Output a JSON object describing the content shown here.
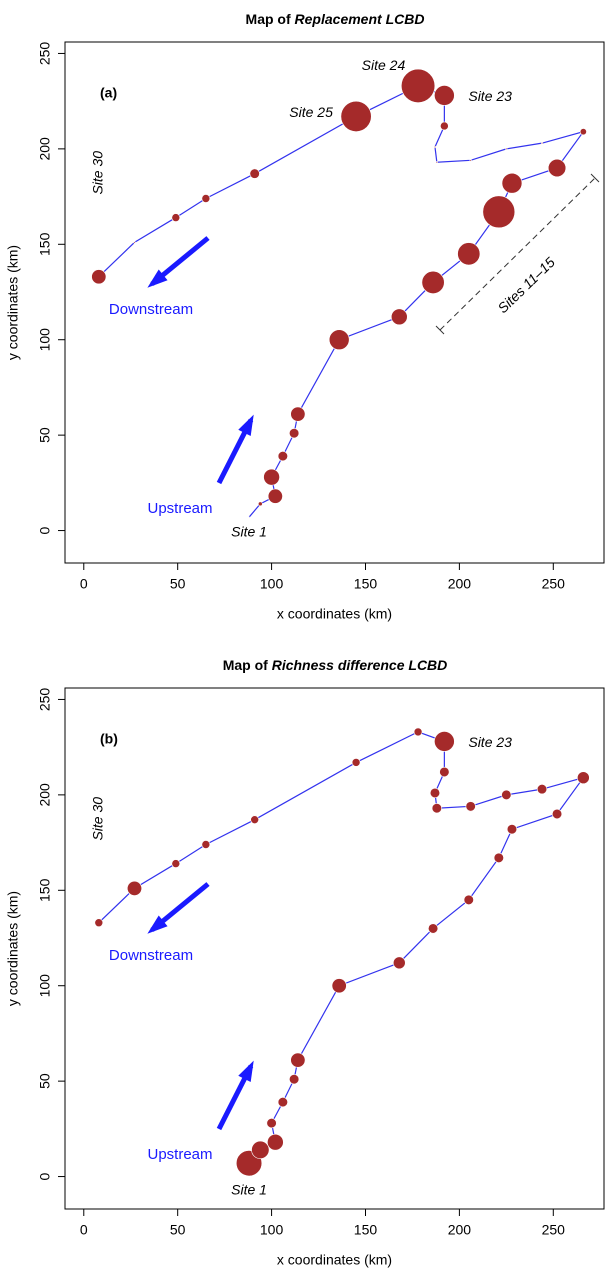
{
  "chart_data": [
    {
      "type": "bubble",
      "panel_label": "(a)",
      "title": "Map of",
      "title_italic": "Replacement LCBD",
      "xlabel": "x coordinates (km)",
      "ylabel": "y coordinates (km)",
      "xlim": [
        -10,
        277
      ],
      "ylim": [
        -17,
        256
      ],
      "xticks": [
        0,
        50,
        100,
        150,
        200,
        250
      ],
      "yticks": [
        0,
        50,
        100,
        150,
        200,
        250
      ],
      "color": "#a52a2a",
      "line_color": "#3333ee",
      "x": [
        88,
        94,
        102,
        100,
        106,
        112,
        114,
        136,
        168,
        186,
        205,
        221,
        228,
        252,
        266,
        244,
        225,
        206,
        188,
        187,
        192,
        192,
        178,
        145,
        91,
        65,
        49,
        27,
        8
      ],
      "y": [
        7,
        14,
        18,
        28,
        39,
        51,
        61,
        100,
        112,
        130,
        145,
        167,
        182,
        190,
        209,
        203,
        200,
        194,
        193,
        201,
        212,
        228,
        233,
        217,
        187,
        174,
        164,
        151,
        133
      ],
      "sizes": [
        0.001,
        0.005,
        0.018,
        0.02,
        0.012,
        0.012,
        0.018,
        0.025,
        0.02,
        0.028,
        0.028,
        0.04,
        0.025,
        0.022,
        0.008,
        0.002,
        0.002,
        0.002,
        0.002,
        0.002,
        0.01,
        0.025,
        0.042,
        0.038,
        0.012,
        0.01,
        0.01,
        0.002,
        0.018
      ],
      "point_labels": [
        "Site 1",
        null,
        null,
        null,
        null,
        null,
        null,
        null,
        null,
        null,
        null,
        null,
        null,
        null,
        null,
        null,
        null,
        null,
        null,
        null,
        null,
        "Site 23",
        "Site 24",
        "Site 25",
        null,
        null,
        null,
        null,
        "Site 30"
      ],
      "downstream_label": "Downstream",
      "upstream_label": "Upstream",
      "bracket_label": "Sites 11–15"
    },
    {
      "type": "bubble",
      "panel_label": "(b)",
      "title": "Map of",
      "title_italic": "Richness difference LCBD",
      "xlabel": "x coordinates (km)",
      "ylabel": "y coordinates (km)",
      "xlim": [
        -10,
        277
      ],
      "ylim": [
        -17,
        256
      ],
      "xticks": [
        0,
        50,
        100,
        150,
        200,
        250
      ],
      "yticks": [
        0,
        50,
        100,
        150,
        200,
        250
      ],
      "color": "#a52a2a",
      "line_color": "#3333ee",
      "x": [
        88,
        94,
        102,
        100,
        106,
        112,
        114,
        136,
        168,
        186,
        205,
        221,
        228,
        252,
        266,
        244,
        225,
        206,
        188,
        187,
        192,
        192,
        178,
        145,
        91,
        65,
        49,
        27,
        8
      ],
      "y": [
        7,
        14,
        18,
        28,
        39,
        51,
        61,
        100,
        112,
        130,
        145,
        167,
        182,
        190,
        209,
        203,
        200,
        194,
        193,
        201,
        212,
        228,
        233,
        217,
        187,
        174,
        164,
        151,
        133
      ],
      "sizes": [
        0.032,
        0.022,
        0.02,
        0.012,
        0.012,
        0.012,
        0.018,
        0.018,
        0.015,
        0.012,
        0.012,
        0.012,
        0.012,
        0.012,
        0.015,
        0.012,
        0.012,
        0.012,
        0.012,
        0.012,
        0.012,
        0.025,
        0.01,
        0.01,
        0.01,
        0.01,
        0.01,
        0.018,
        0.01
      ],
      "point_labels": [
        "Site 1",
        null,
        null,
        null,
        null,
        null,
        null,
        null,
        null,
        null,
        null,
        null,
        null,
        null,
        null,
        null,
        null,
        null,
        null,
        null,
        null,
        "Site 23",
        null,
        null,
        null,
        null,
        null,
        null,
        "Site 30"
      ],
      "downstream_label": "Downstream",
      "upstream_label": "Upstream"
    }
  ]
}
